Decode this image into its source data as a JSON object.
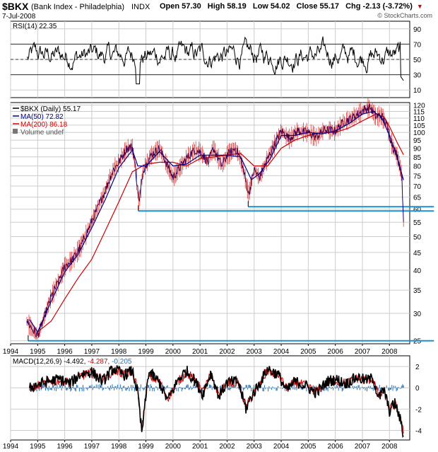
{
  "header": {
    "symbol": "$BKX",
    "name": "(Bank Index - Philadelphia)",
    "exchange": "INDX",
    "date": "7-Jul-2008",
    "open": "Open 57.30",
    "high": "High 58.19",
    "low": "Low 54.02",
    "close": "Close 55.17",
    "chg": "Chg -2.13 (-3.72%)",
    "chg_icon": "triangle-down-icon",
    "credit": "© StockCharts.com"
  },
  "colors": {
    "price": "#000080",
    "ma50": "#000080",
    "ma200": "#cc0000",
    "support": "#1f8fcf",
    "macd": "#000000",
    "signal": "#cc0000",
    "histogram": "#1f6fb5",
    "grid": "#cccccc"
  },
  "chart_data": [
    {
      "type": "line",
      "panel": "RSI",
      "legend": "RSI(14) 22.35",
      "y_ticks": [
        "90",
        "70",
        "50",
        "30",
        "10"
      ],
      "ylim": [
        0,
        100
      ],
      "reference_lines": [
        70,
        50,
        30
      ],
      "x_ticks": [
        "1994",
        "1995",
        "1996",
        "1997",
        "1998",
        "1999",
        "2000",
        "2001",
        "2002",
        "2003",
        "2004",
        "2005",
        "2006",
        "2007",
        "2008"
      ],
      "last_value": 22.35
    },
    {
      "type": "line",
      "panel": "Price",
      "scale": "log",
      "legend": [
        "$BKX (Daily) 55.17",
        "MA(50) 72.82",
        "MA(200) 86.18",
        "Volume undef"
      ],
      "y_ticks": [
        120,
        115,
        110,
        105,
        100,
        95,
        90,
        85,
        80,
        75,
        70,
        65,
        60,
        55,
        50,
        45,
        40,
        35,
        30,
        25
      ],
      "ylim": [
        24.5,
        122
      ],
      "x_ticks": [
        "1994",
        "1995",
        "1996",
        "1997",
        "1998",
        "1999",
        "2000",
        "2001",
        "2002",
        "2003",
        "2004",
        "2005",
        "2006",
        "2007",
        "2008"
      ],
      "series": [
        {
          "name": "$BKX (Daily) 55.17",
          "x": [
            1994.6,
            1994.8,
            1995.0,
            1995.2,
            1995.5,
            1995.8,
            1996.0,
            1996.3,
            1996.6,
            1996.9,
            1997.2,
            1997.5,
            1997.8,
            1998.0,
            1998.3,
            1998.5,
            1998.6,
            1998.75,
            1998.9,
            1999.2,
            1999.5,
            1999.8,
            2000.0,
            2000.2,
            2000.5,
            2000.8,
            2001.0,
            2001.3,
            2001.5,
            2001.8,
            2002.0,
            2002.3,
            2002.5,
            2002.7,
            2002.8,
            2003.0,
            2003.2,
            2003.5,
            2003.8,
            2004.0,
            2004.3,
            2004.6,
            2005.0,
            2005.3,
            2005.6,
            2006.0,
            2006.3,
            2006.6,
            2006.9,
            2007.1,
            2007.3,
            2007.5,
            2007.7,
            2007.9,
            2008.1,
            2008.3,
            2008.45,
            2008.52
          ],
          "y": [
            28.5,
            27.0,
            25.8,
            28.5,
            33.5,
            37.5,
            41,
            43,
            47,
            53,
            60,
            68,
            78,
            82,
            90,
            91,
            80,
            62,
            78,
            86,
            90,
            80,
            74,
            78,
            84,
            89,
            88,
            82,
            90,
            80,
            86,
            90,
            84,
            72,
            66,
            78,
            74,
            84,
            94,
            101,
            96,
            101,
            100,
            97,
            102,
            101,
            107,
            110,
            114,
            117,
            118,
            111,
            112,
            105,
            92,
            85,
            76,
            55.17
          ]
        },
        {
          "name": "MA(50) 72.82",
          "x": [
            1994.7,
            1995.0,
            1995.5,
            1996.0,
            1996.5,
            1997.0,
            1997.5,
            1998.0,
            1998.5,
            1998.7,
            1999.0,
            1999.5,
            2000.0,
            2000.5,
            2001.0,
            2001.5,
            2002.0,
            2002.5,
            2002.9,
            2003.2,
            2003.6,
            2004.0,
            2004.5,
            2005.0,
            2005.5,
            2006.0,
            2006.5,
            2007.0,
            2007.4,
            2007.7,
            2008.0,
            2008.3,
            2008.52
          ],
          "y": [
            28.8,
            26.5,
            32.5,
            39.5,
            44.5,
            53,
            64,
            79,
            89,
            80,
            80,
            88,
            80,
            81,
            86,
            86,
            86,
            85,
            73,
            76,
            84,
            98,
            98,
            100,
            99,
            101,
            106,
            113,
            115,
            111,
            98,
            84,
            72.82
          ]
        },
        {
          "name": "MA(200) 86.18",
          "x": [
            1995.0,
            1995.5,
            1996.0,
            1996.5,
            1997.0,
            1997.5,
            1998.0,
            1998.5,
            1999.0,
            1999.5,
            2000.0,
            2000.5,
            2001.0,
            2001.5,
            2002.0,
            2002.5,
            2003.0,
            2003.5,
            2004.0,
            2004.5,
            2005.0,
            2005.5,
            2006.0,
            2006.5,
            2007.0,
            2007.5,
            2007.8,
            2008.0,
            2008.3,
            2008.52
          ],
          "y": [
            26.5,
            28.5,
            33,
            38,
            43,
            52,
            63,
            77,
            81,
            82,
            82,
            80,
            84,
            85,
            86,
            87,
            80,
            80,
            90,
            95,
            98,
            100,
            100,
            103,
            108,
            113,
            111,
            104,
            93,
            86.18
          ]
        }
      ],
      "support_lines": [
        {
          "from_x": 1998.72,
          "to_x": 2008.6,
          "y": 59.3
        },
        {
          "from_x": 2002.78,
          "to_x": 2008.6,
          "y": 61.0
        },
        {
          "from_x": 1994.65,
          "to_x": 2008.6,
          "y": 25.0
        }
      ]
    },
    {
      "type": "line",
      "panel": "MACD",
      "legend": [
        "MACD(12,26,9)",
        "-4.492",
        "-4.287",
        "-0.205"
      ],
      "y_ticks": [
        "2",
        "0",
        "-2",
        "-4"
      ],
      "ylim": [
        -4.9,
        3.0
      ],
      "x_ticks": [
        "1994",
        "1995",
        "1996",
        "1997",
        "1998",
        "1999",
        "2000",
        "2001",
        "2002",
        "2003",
        "2004",
        "2005",
        "2006",
        "2007",
        "2008"
      ],
      "series": [
        {
          "name": "MACD",
          "x": [
            1994.7,
            1995.0,
            1995.4,
            1995.8,
            1996.2,
            1996.6,
            1997.0,
            1997.4,
            1997.8,
            1998.2,
            1998.5,
            1998.7,
            1998.85,
            1999.1,
            1999.5,
            1999.8,
            2000.2,
            2000.5,
            2000.8,
            2001.1,
            2001.4,
            2001.7,
            2002.0,
            2002.4,
            2002.7,
            2002.9,
            2003.2,
            2003.5,
            2003.9,
            2004.2,
            2004.5,
            2004.9,
            2005.3,
            2005.7,
            2006.0,
            2006.4,
            2006.8,
            2007.1,
            2007.4,
            2007.6,
            2007.8,
            2008.0,
            2008.2,
            2008.4,
            2008.52
          ],
          "y": [
            0.0,
            0.3,
            0.6,
            0.8,
            0.4,
            1.3,
            1.5,
            0.6,
            1.8,
            1.2,
            1.6,
            -0.5,
            -4.3,
            1.5,
            0.5,
            -1.2,
            0.8,
            1.6,
            0.7,
            -0.6,
            1.4,
            -0.8,
            0.5,
            0.6,
            -2.0,
            -0.8,
            0.4,
            1.8,
            1.2,
            -0.3,
            0.6,
            0.2,
            -0.5,
            0.6,
            0.8,
            0.4,
            1.0,
            0.7,
            0.9,
            -1.0,
            -0.2,
            -2.2,
            -1.4,
            -3.0,
            -4.492
          ]
        },
        {
          "name": "Signal",
          "x": [
            1994.7,
            1995.0,
            1995.4,
            1995.8,
            1996.2,
            1996.6,
            1997.0,
            1997.4,
            1997.8,
            1998.2,
            1998.5,
            1998.7,
            1998.85,
            1999.1,
            1999.5,
            1999.8,
            2000.2,
            2000.5,
            2000.8,
            2001.1,
            2001.4,
            2001.7,
            2002.0,
            2002.4,
            2002.7,
            2002.9,
            2003.2,
            2003.5,
            2003.9,
            2004.2,
            2004.5,
            2004.9,
            2005.3,
            2005.7,
            2006.0,
            2006.4,
            2006.8,
            2007.1,
            2007.4,
            2007.6,
            2007.8,
            2008.0,
            2008.2,
            2008.4,
            2008.52
          ],
          "y": [
            0.0,
            0.2,
            0.5,
            0.7,
            0.5,
            1.1,
            1.4,
            0.8,
            1.6,
            1.3,
            1.5,
            -0.2,
            -3.8,
            1.1,
            0.6,
            -1.0,
            0.6,
            1.4,
            0.8,
            -0.4,
            1.2,
            -0.6,
            0.4,
            0.6,
            -1.8,
            -0.9,
            0.3,
            1.6,
            1.2,
            -0.1,
            0.5,
            0.2,
            -0.4,
            0.5,
            0.7,
            0.4,
            0.9,
            0.7,
            0.8,
            -0.8,
            -0.3,
            -2.0,
            -1.5,
            -2.8,
            -4.287
          ]
        },
        {
          "name": "Histogram",
          "last": -0.205
        }
      ]
    }
  ]
}
